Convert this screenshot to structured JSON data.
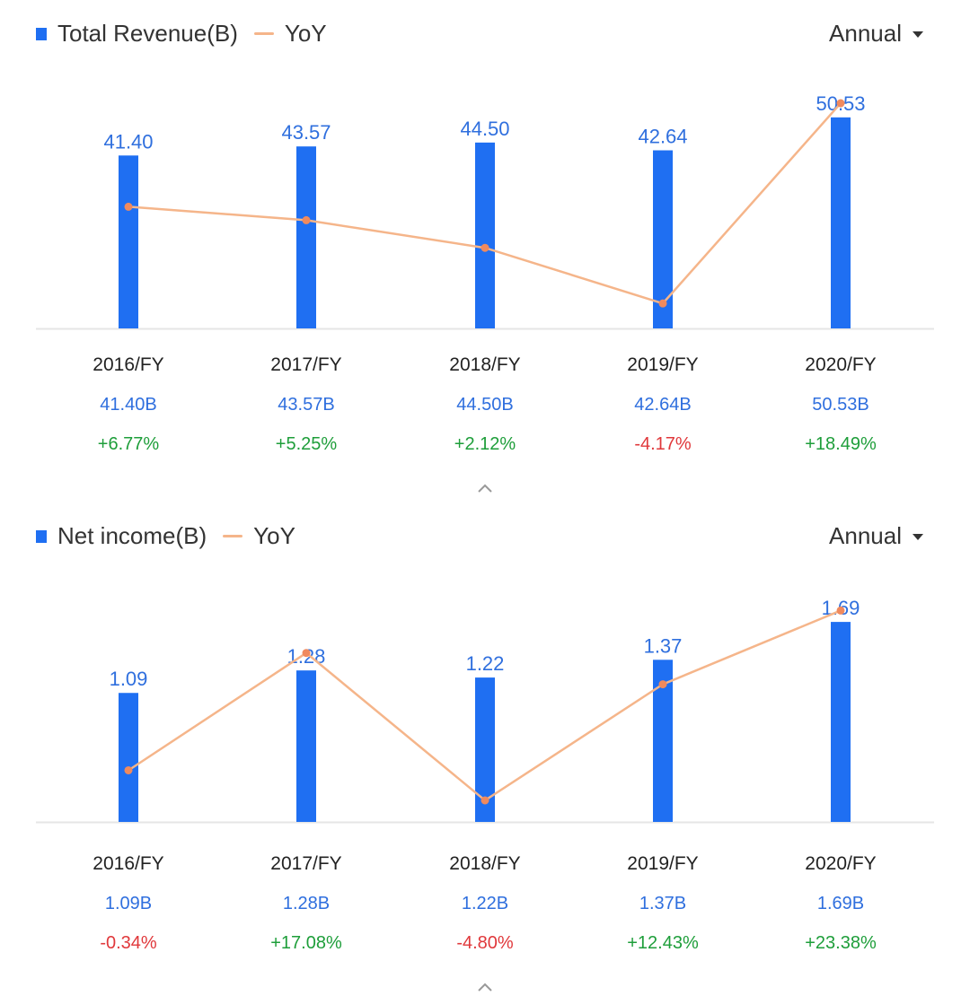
{
  "colors": {
    "bar": "#1f6ff2",
    "line": "#f5b58a",
    "line_dot": "#f08a5e",
    "value_text": "#2f6fde",
    "positive": "#1e9e3a",
    "negative": "#e0383b",
    "axis": "#e6e6e6"
  },
  "icons": {
    "dropdown": "caret-down-icon",
    "collapse": "chevron-up-icon"
  },
  "chart_data": [
    {
      "type": "bar",
      "legend": {
        "bar_label": "Total Revenue(B)",
        "line_label": "YoY"
      },
      "period_selector": "Annual",
      "categories": [
        "2016/FY",
        "2017/FY",
        "2018/FY",
        "2019/FY",
        "2020/FY"
      ],
      "series": [
        {
          "name": "Total Revenue(B)",
          "type": "bar",
          "values": [
            41.4,
            43.57,
            44.5,
            42.64,
            50.53
          ],
          "labels": [
            "41.40",
            "43.57",
            "44.50",
            "42.64",
            "50.53"
          ]
        },
        {
          "name": "YoY",
          "type": "line",
          "values": [
            6.77,
            5.25,
            2.12,
            -4.17,
            18.49
          ]
        }
      ],
      "value_row": [
        "41.40B",
        "43.57B",
        "44.50B",
        "42.64B",
        "50.53B"
      ],
      "yoy_row": [
        "+6.77%",
        "+5.25%",
        "+2.12%",
        "-4.17%",
        "+18.49%"
      ],
      "ylim": [
        0,
        55
      ],
      "yoy_lim": [
        -7,
        19
      ]
    },
    {
      "type": "bar",
      "legend": {
        "bar_label": "Net income(B)",
        "line_label": "YoY"
      },
      "period_selector": "Annual",
      "categories": [
        "2016/FY",
        "2017/FY",
        "2018/FY",
        "2019/FY",
        "2020/FY"
      ],
      "series": [
        {
          "name": "Net income(B)",
          "type": "bar",
          "values": [
            1.09,
            1.28,
            1.22,
            1.37,
            1.69
          ],
          "labels": [
            "1.09",
            "1.28",
            "1.22",
            "1.37",
            "1.69"
          ]
        },
        {
          "name": "YoY",
          "type": "line",
          "values": [
            -0.34,
            17.08,
            -4.8,
            12.43,
            23.38
          ]
        }
      ],
      "value_row": [
        "1.09B",
        "1.28B",
        "1.22B",
        "1.37B",
        "1.69B"
      ],
      "yoy_row": [
        "-0.34%",
        "+17.08%",
        "-4.80%",
        "+12.43%",
        "+23.38%"
      ],
      "ylim": [
        0,
        1.85
      ],
      "yoy_lim": [
        -8,
        24.5
      ]
    }
  ]
}
